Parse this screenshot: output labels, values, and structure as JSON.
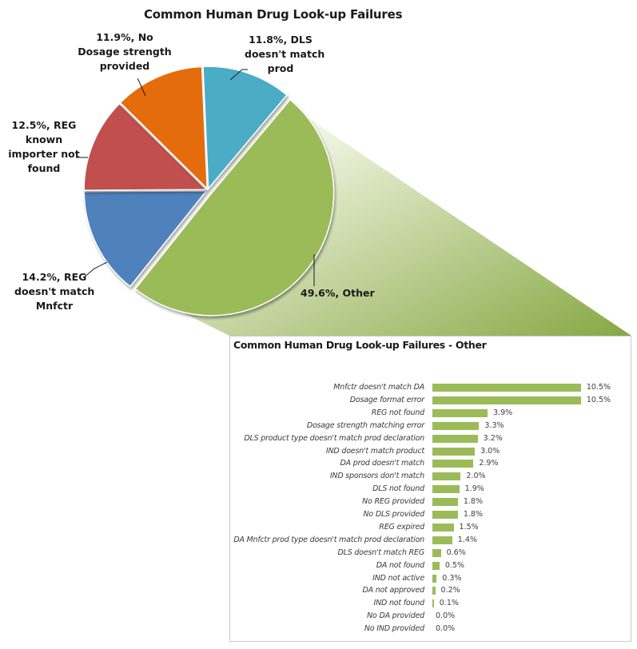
{
  "chart_data": [
    {
      "type": "pie",
      "title": "Common Human Drug Look-up Failures",
      "slices": [
        {
          "label": "Other",
          "value": 49.6,
          "display": "49.6%, Other",
          "color": "#9bbb59"
        },
        {
          "label": "REG doesn't match Mnfctr",
          "value": 14.2,
          "display": "14.2%, REG doesn't match Mnfctr",
          "color": "#4f81bd"
        },
        {
          "label": "REG known importer not found",
          "value": 12.5,
          "display": "12.5%, REG known importer not found",
          "color": "#c0504d"
        },
        {
          "label": "No Dosage strength provided",
          "value": 11.9,
          "display": "11.9%, No Dosage strength provided",
          "color": "#e46c0a"
        },
        {
          "label": "DLS doesn't match prod",
          "value": 11.8,
          "display": "11.8%, DLS doesn't match prod",
          "color": "#4bacc6"
        }
      ],
      "exploded_slice": "Other",
      "data_labels": "percent, category"
    },
    {
      "type": "bar",
      "orientation": "horizontal",
      "title": "Common Human Drug Look-up Failures - Other",
      "categories": [
        "Mnfctr doesn't match DA",
        "Dosage format error",
        "REG not found",
        "Dosage strength matching error",
        "DLS product type doesn't match prod declaration",
        "IND doesn't match product",
        "DA prod doesn't match",
        "IND sponsors don't match",
        "DLS not found",
        "No REG provided",
        "No DLS provided",
        "REG expired",
        "DA Mnfctr prod type doesn't match prod declaration",
        "DLS doesn't match REG",
        "DA not found",
        "IND not active",
        "DA not approved",
        "IND not found",
        "No DA provided",
        "No IND provided"
      ],
      "values": [
        10.5,
        10.5,
        3.9,
        3.3,
        3.2,
        3.0,
        2.9,
        2.0,
        1.9,
        1.8,
        1.8,
        1.5,
        1.4,
        0.6,
        0.5,
        0.3,
        0.2,
        0.1,
        0.0,
        0.0
      ],
      "value_labels": [
        "10.5%",
        "10.5%",
        "3.9%",
        "3.3%",
        "3.2%",
        "3.0%",
        "2.9%",
        "2.0%",
        "1.9%",
        "1.8%",
        "1.8%",
        "1.5%",
        "1.4%",
        "0.6%",
        "0.5%",
        "0.3%",
        "0.2%",
        "0.1%",
        "0.0%",
        "0.0%"
      ],
      "bar_color": "#9bbb59",
      "xlabel": "",
      "ylabel": "",
      "grid": false,
      "axes_visible": false
    }
  ],
  "pie_labels": {
    "other": [
      "49.6%, Other"
    ],
    "reg_mnfctr": [
      "14.2%, REG",
      "doesn't match",
      "Mnfctr"
    ],
    "reg_importer": [
      "12.5%, REG",
      "known",
      "importer not",
      "found"
    ],
    "dosage": [
      "11.9%, No",
      "Dosage strength",
      "provided"
    ],
    "dls": [
      "11.8%, DLS",
      "doesn't match",
      "prod"
    ]
  }
}
